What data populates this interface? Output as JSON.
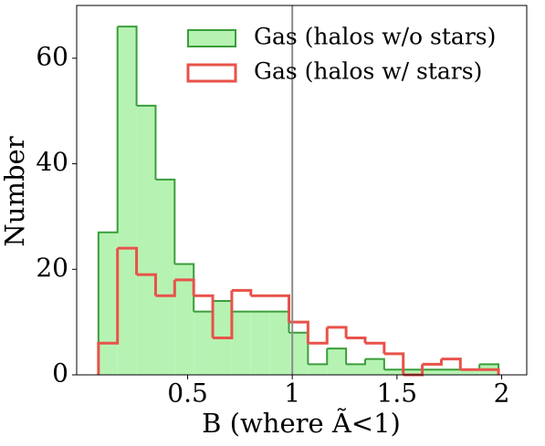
{
  "chart_data": {
    "type": "histogram",
    "xlabel": "B (where Ã<1)",
    "ylabel": "Number",
    "bins": [
      0.074,
      0.165,
      0.256,
      0.347,
      0.438,
      0.529,
      0.62,
      0.711,
      0.802,
      0.893,
      0.984,
      1.075,
      1.166,
      1.257,
      1.348,
      1.439,
      1.53,
      1.621,
      1.712,
      1.803,
      1.894,
      1.985
    ],
    "series": [
      {
        "name": "Gas (halos w/o stars)",
        "color": "#3a9e3a",
        "fill": "#b6f3b3",
        "style": "filled",
        "values": [
          27,
          66,
          51,
          37,
          21,
          12,
          14,
          12,
          12,
          12,
          8,
          2,
          5,
          2,
          3,
          1,
          1,
          1,
          1,
          1,
          2
        ]
      },
      {
        "name": "Gas (halos w/ stars)",
        "color": "#e8524a",
        "style": "step",
        "values": [
          6,
          24,
          19,
          15,
          18,
          15,
          7,
          16,
          15,
          15,
          10,
          6,
          9,
          7,
          6,
          4,
          0,
          2,
          3,
          1,
          1
        ]
      }
    ],
    "vline": 1.0,
    "vline_color": "#8c8c8c",
    "xlim": [
      -0.03,
      2.12
    ],
    "xticks": [
      0.5,
      1.0,
      1.5,
      2.0
    ],
    "ylim": [
      0,
      70
    ],
    "yticks": [
      0,
      20,
      40,
      60
    ],
    "legend": "upper right"
  }
}
